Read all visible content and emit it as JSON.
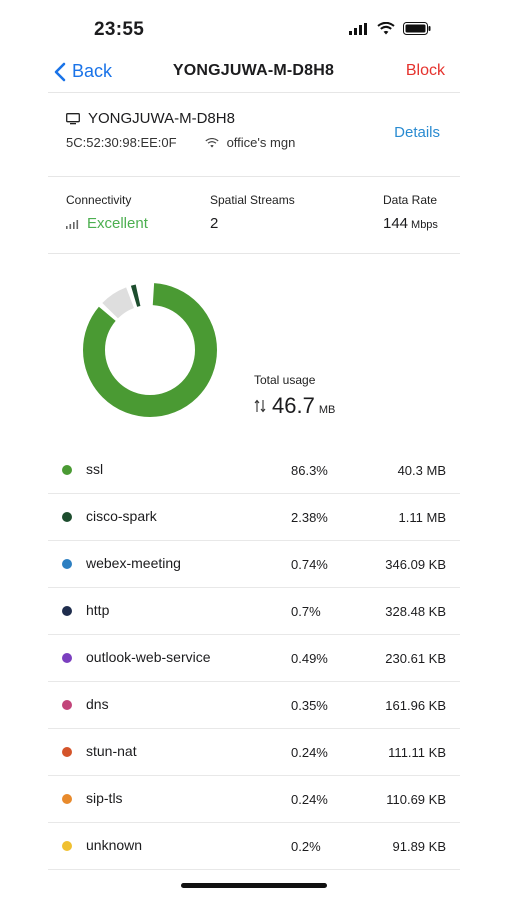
{
  "status_bar": {
    "time": "23:55"
  },
  "nav": {
    "back_label": "Back",
    "title": "YONGJUWA-M-D8H8",
    "block_label": "Block"
  },
  "device": {
    "name": "YONGJUWA-M-D8H8",
    "mac": "5C:52:30:98:EE:0F",
    "ssid": "office's mgn",
    "details_label": "Details"
  },
  "metrics": {
    "connectivity": {
      "label": "Connectivity",
      "value": "Excellent",
      "color": "#4caf50"
    },
    "spatial_streams": {
      "label": "Spatial Streams",
      "value": "2"
    },
    "data_rate": {
      "label": "Data Rate",
      "value": "144",
      "unit": "Mbps"
    }
  },
  "total_usage": {
    "label": "Total usage",
    "value": "46.7",
    "unit": "MB"
  },
  "apps": [
    {
      "name": "ssl",
      "percent": "86.3%",
      "size": "40.3 MB",
      "color": "#4a9a33"
    },
    {
      "name": "cisco-spark",
      "percent": "2.38%",
      "size": "1.11 MB",
      "color": "#1d4d2e"
    },
    {
      "name": "webex-meeting",
      "percent": "0.74%",
      "size": "346.09 KB",
      "color": "#2d7fc1"
    },
    {
      "name": "http",
      "percent": "0.7%",
      "size": "328.48 KB",
      "color": "#1f2d4d"
    },
    {
      "name": "outlook-web-service",
      "percent": "0.49%",
      "size": "230.61 KB",
      "color": "#7b3fbf"
    },
    {
      "name": "dns",
      "percent": "0.35%",
      "size": "161.96 KB",
      "color": "#c2447a"
    },
    {
      "name": "stun-nat",
      "percent": "0.24%",
      "size": "111.11 KB",
      "color": "#d4542a"
    },
    {
      "name": "sip-tls",
      "percent": "0.24%",
      "size": "110.69 KB",
      "color": "#e88a2c"
    },
    {
      "name": "unknown",
      "percent": "0.2%",
      "size": "91.89 KB",
      "color": "#f0c030"
    }
  ],
  "donut_segments": [
    {
      "name": "ssl",
      "fraction": 0.863,
      "color": "#4a9a33"
    },
    {
      "name": "other",
      "fraction": 0.08,
      "color": "#dedede"
    },
    {
      "name": "cisco-spark",
      "fraction": 0.0238,
      "color": "#1d4d2e"
    }
  ]
}
